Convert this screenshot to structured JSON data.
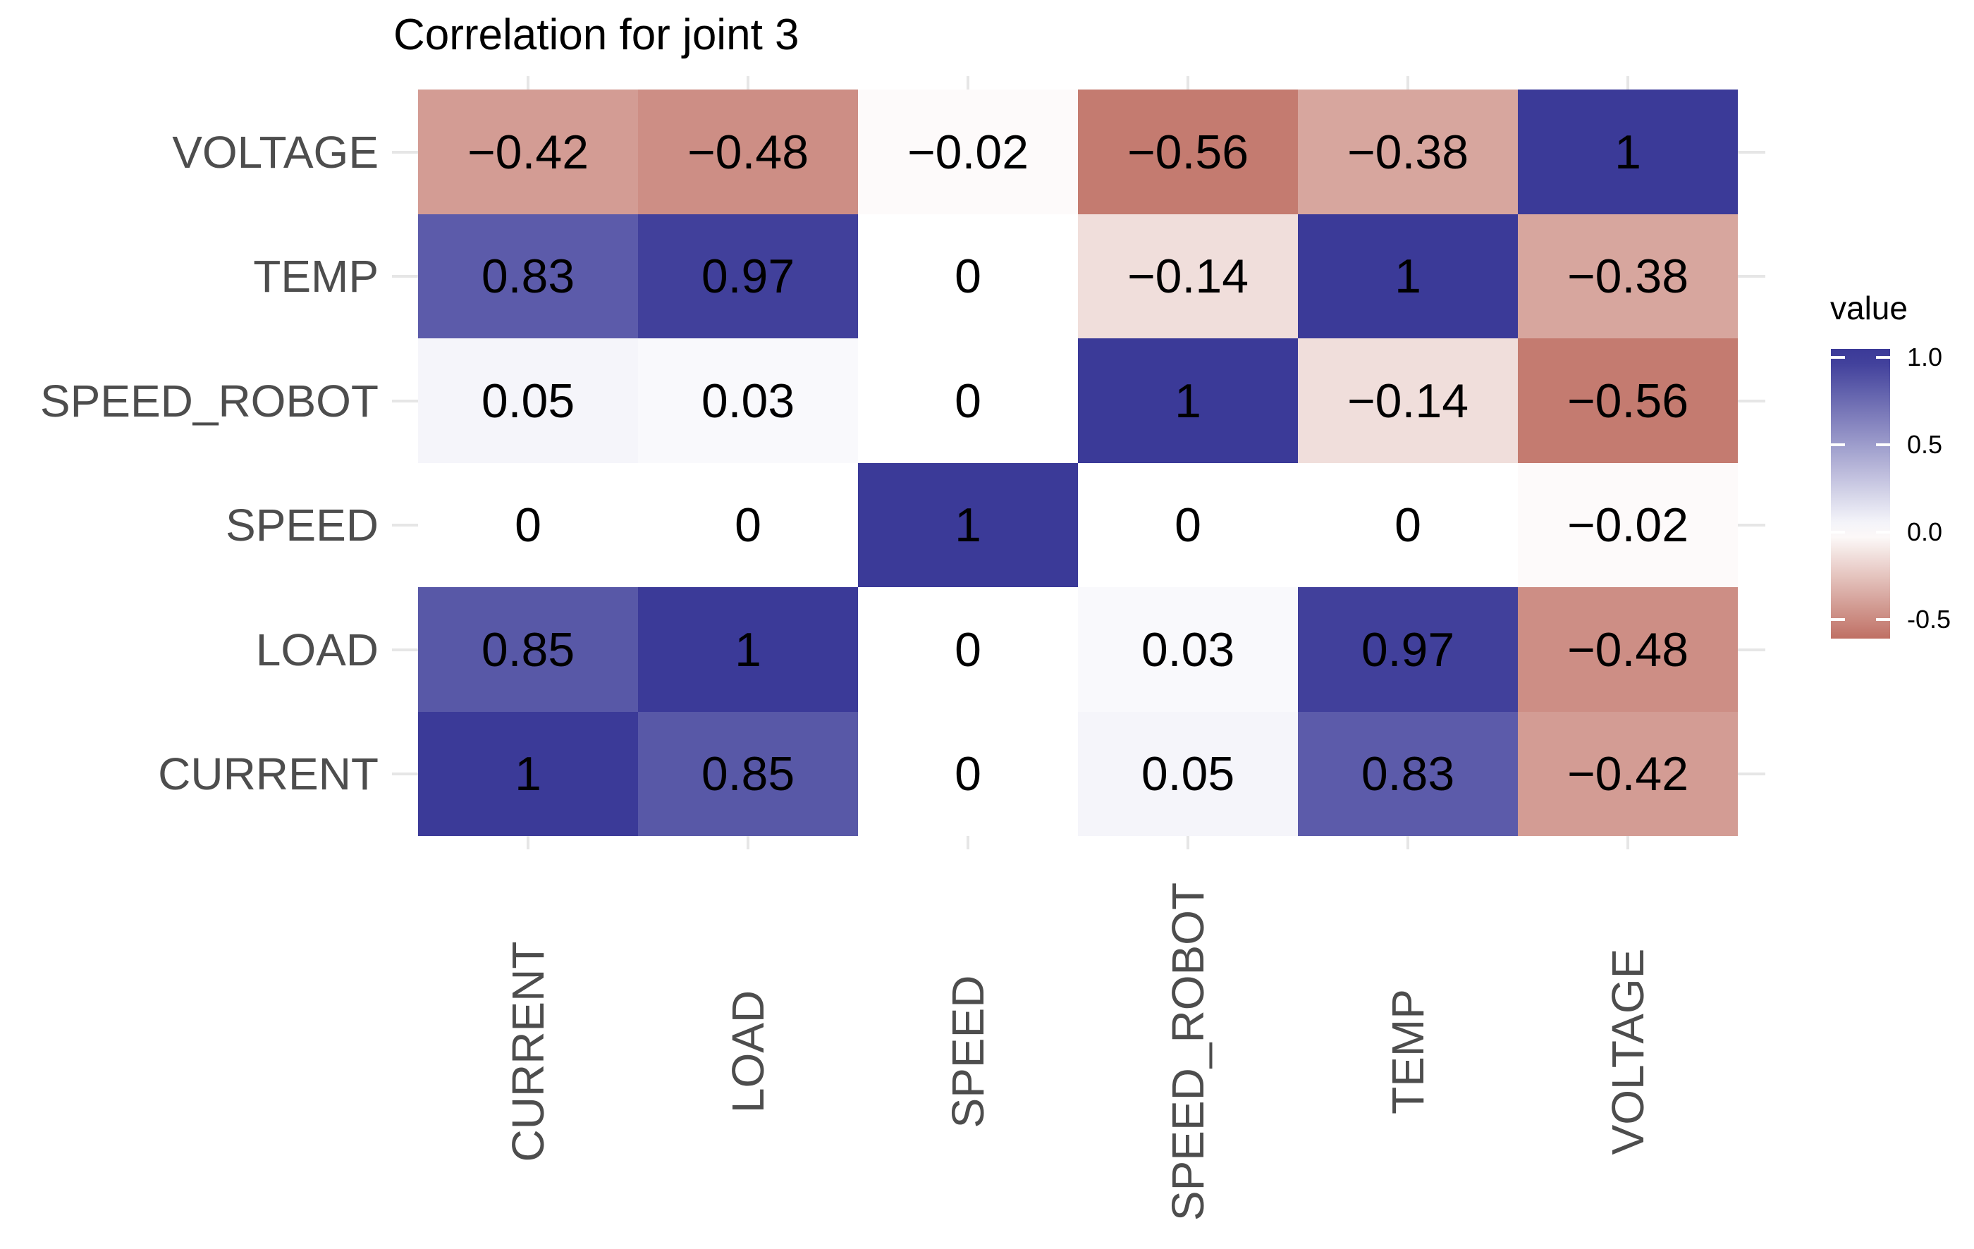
{
  "chart_data": {
    "type": "heatmap",
    "title": "Correlation for joint 3",
    "x_categories": [
      "CURRENT",
      "LOAD",
      "SPEED",
      "SPEED_ROBOT",
      "TEMP",
      "VOLTAGE"
    ],
    "y_categories_top_to_bottom": [
      "VOLTAGE",
      "TEMP",
      "SPEED_ROBOT",
      "SPEED",
      "LOAD",
      "CURRENT"
    ],
    "rows": [
      {
        "y": "VOLTAGE",
        "values": [
          -0.42,
          -0.48,
          -0.02,
          -0.56,
          -0.38,
          1
        ],
        "labels": [
          "−0.42",
          "−0.48",
          "−0.02",
          "−0.56",
          "−0.38",
          "1"
        ]
      },
      {
        "y": "TEMP",
        "values": [
          0.83,
          0.97,
          0,
          -0.14,
          1,
          -0.38
        ],
        "labels": [
          "0.83",
          "0.97",
          "0",
          "−0.14",
          "1",
          "−0.38"
        ]
      },
      {
        "y": "SPEED_ROBOT",
        "values": [
          0.05,
          0.03,
          0,
          1,
          -0.14,
          -0.56
        ],
        "labels": [
          "0.05",
          "0.03",
          "0",
          "1",
          "−0.14",
          "−0.56"
        ]
      },
      {
        "y": "SPEED",
        "values": [
          0,
          0,
          1,
          0,
          0,
          -0.02
        ],
        "labels": [
          "0",
          "0",
          "1",
          "0",
          "0",
          "−0.02"
        ]
      },
      {
        "y": "LOAD",
        "values": [
          0.85,
          1,
          0,
          0.03,
          0.97,
          -0.48
        ],
        "labels": [
          "0.85",
          "1",
          "0",
          "0.03",
          "0.97",
          "−0.48"
        ]
      },
      {
        "y": "CURRENT",
        "values": [
          1,
          0.85,
          0,
          0.05,
          0.83,
          -0.42
        ],
        "labels": [
          "1",
          "0.85",
          "0",
          "0.05",
          "0.83",
          "−0.42"
        ]
      }
    ],
    "legend": {
      "title": "value",
      "ticks": [
        {
          "label": "1.0",
          "value": 1.0
        },
        {
          "label": "0.5",
          "value": 0.5
        },
        {
          "label": "0.0",
          "value": 0.0
        },
        {
          "label": "-0.5",
          "value": -0.5
        }
      ],
      "domain_min": -0.609,
      "domain_max": 1.048
    },
    "colors": {
      "high": "#3B3A98",
      "mid": "#FFFFFF",
      "low": "#961400",
      "axis_text": "#4D4D4D",
      "grid_stub": "#E6E6E6",
      "text": "#000000",
      "background": "#FFFFFF"
    }
  }
}
